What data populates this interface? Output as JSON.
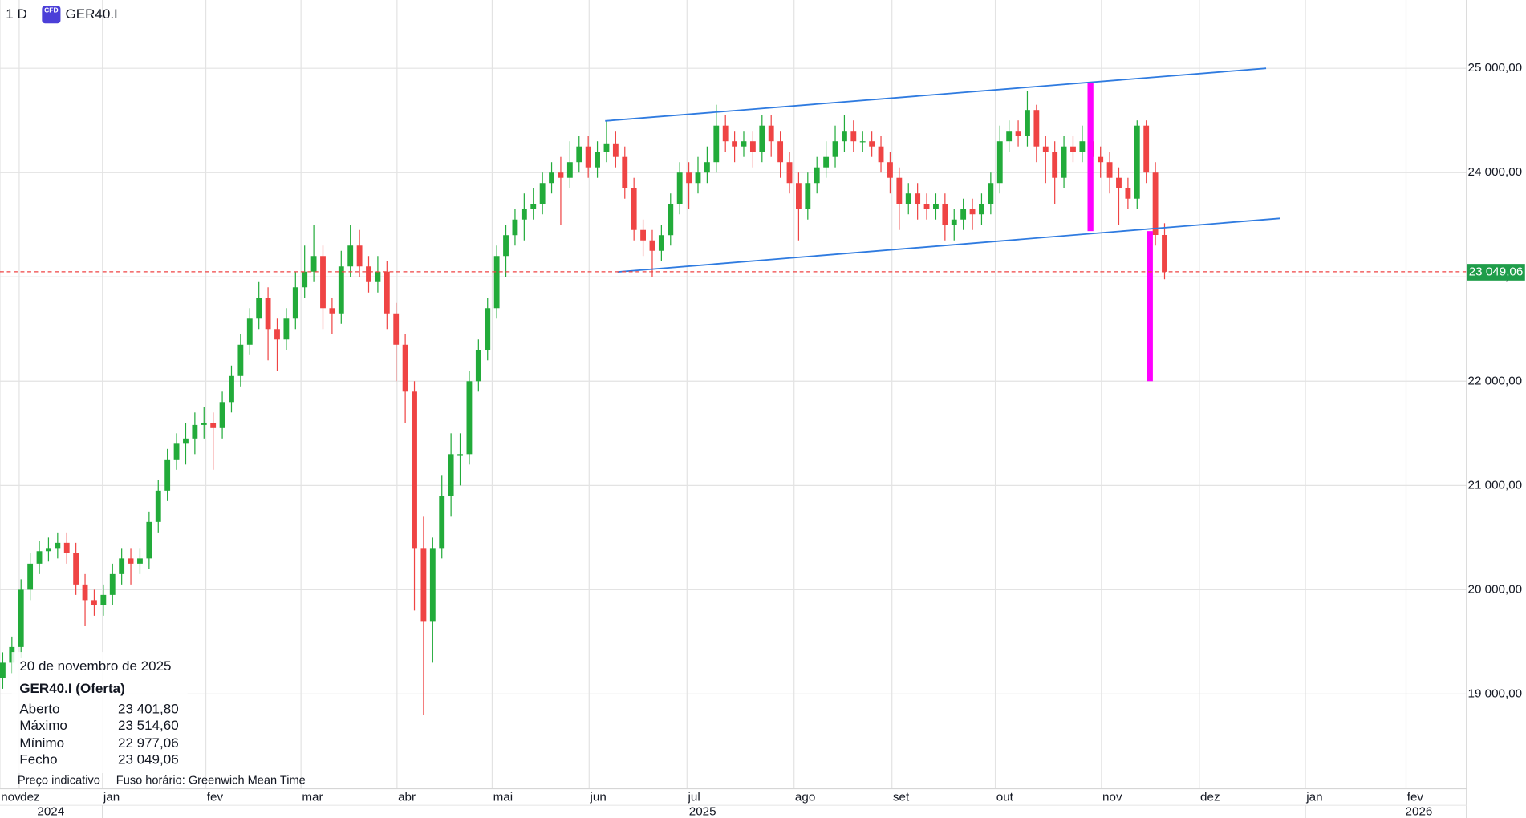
{
  "chart_data": {
    "type": "candlestick",
    "header": {
      "interval": "1 D",
      "icon": "CFD",
      "symbol": "GER40.I"
    },
    "up_color": "#22ab3a",
    "down_color": "#ef4444",
    "xlim": [
      -0.3,
      160
    ],
    "ylim": [
      18092,
      25655
    ],
    "grid": true,
    "yticks": [
      {
        "value": 19000,
        "label": "19 000,00"
      },
      {
        "value": 20000,
        "label": "20 000,00"
      },
      {
        "value": 21000,
        "label": "21 000,00"
      },
      {
        "value": 22000,
        "label": "22 000,00"
      },
      {
        "value": 23000,
        "label": "23 000,00"
      },
      {
        "value": 24000,
        "label": "24 000,00"
      },
      {
        "value": 25000,
        "label": "25 000,00"
      }
    ],
    "xticks": [
      {
        "value": -0.3,
        "label": "nov"
      },
      {
        "value": 1.8,
        "label": "dez"
      },
      {
        "value": 10.9,
        "label": "jan"
      },
      {
        "value": 22.2,
        "label": "fev"
      },
      {
        "value": 32.6,
        "label": "mar"
      },
      {
        "value": 43.1,
        "label": "abr"
      },
      {
        "value": 53.5,
        "label": "mai"
      },
      {
        "value": 64.1,
        "label": "jun"
      },
      {
        "value": 74.8,
        "label": "jul"
      },
      {
        "value": 86.5,
        "label": "ago"
      },
      {
        "value": 97.2,
        "label": "set"
      },
      {
        "value": 108.5,
        "label": "out"
      },
      {
        "value": 120.1,
        "label": "nov"
      },
      {
        "value": 130.8,
        "label": "dez"
      },
      {
        "value": 142.4,
        "label": "jan"
      },
      {
        "value": 153.4,
        "label": "fev"
      }
    ],
    "year_ticks": [
      {
        "value": 5.25,
        "label": "2024"
      },
      {
        "value": 76.5,
        "label": "2025"
      },
      {
        "value": 154.8,
        "label": "2026"
      }
    ],
    "ohlc": {
      "open": [
        19150,
        19300,
        19450,
        20000,
        20250,
        20370,
        20400,
        20450,
        20350,
        20050,
        19900,
        19850,
        19950,
        20150,
        20300,
        20250,
        20300,
        20650,
        20950,
        21250,
        21400,
        21450,
        21580,
        21600,
        21550,
        21800,
        22050,
        22350,
        22600,
        22800,
        22500,
        22400,
        22600,
        22900,
        23050,
        23200,
        22700,
        22650,
        23100,
        23300,
        23100,
        22950,
        23050,
        22650,
        22350,
        21900,
        20400,
        19700,
        20400,
        20900,
        21300,
        21300,
        22000,
        22300,
        22700,
        23200,
        23400,
        23550,
        23650,
        23700,
        23900,
        24000,
        23950,
        24100,
        24250,
        24050,
        24200,
        24280,
        24150,
        23850,
        23450,
        23350,
        23250,
        23400,
        23700,
        24000,
        23900,
        24000,
        24100,
        24450,
        24300,
        24250,
        24300,
        24200,
        24450,
        24300,
        24100,
        23900,
        23650,
        23900,
        24050,
        24150,
        24300,
        24400,
        24300,
        24300,
        24250,
        24100,
        23950,
        23700,
        23800,
        23700,
        23650,
        23700,
        23500,
        23550,
        23650,
        23600,
        23700,
        23900,
        24300,
        24400,
        24350,
        24600,
        24250,
        24200,
        23950,
        24250,
        24200,
        24300,
        24150,
        24100,
        23950,
        23850,
        23750,
        24450,
        24000,
        23401.8
      ],
      "high": [
        19400,
        19550,
        20100,
        20350,
        20470,
        20500,
        20550,
        20550,
        20450,
        20150,
        20000,
        20050,
        20250,
        20400,
        20400,
        20400,
        20750,
        21050,
        21350,
        21500,
        21600,
        21700,
        21750,
        21700,
        21900,
        22150,
        22450,
        22700,
        22950,
        22900,
        22600,
        22700,
        23050,
        23300,
        23500,
        23300,
        22800,
        23250,
        23500,
        23450,
        23200,
        23200,
        23150,
        22750,
        22450,
        22000,
        20700,
        20500,
        21100,
        21500,
        21500,
        22100,
        22400,
        22800,
        23300,
        23500,
        23650,
        23800,
        23850,
        24000,
        24100,
        24150,
        24300,
        24350,
        24350,
        24300,
        24500,
        24400,
        24250,
        23950,
        23550,
        23450,
        23500,
        23800,
        24100,
        24100,
        24150,
        24250,
        24650,
        24550,
        24400,
        24400,
        24400,
        24550,
        24550,
        24400,
        24200,
        24000,
        24000,
        24150,
        24300,
        24450,
        24550,
        24500,
        24400,
        24400,
        24350,
        24200,
        24050,
        23900,
        23900,
        23800,
        23800,
        23800,
        23650,
        23750,
        23750,
        23800,
        24000,
        24450,
        24500,
        24500,
        24780,
        24650,
        24350,
        24300,
        24350,
        24350,
        24450,
        24400,
        24250,
        24200,
        24050,
        23950,
        24500,
        24500,
        24100,
        23514.6
      ],
      "low": [
        19050,
        19200,
        19350,
        19900,
        20150,
        20270,
        20300,
        20250,
        19950,
        19650,
        19750,
        19750,
        19850,
        20050,
        20050,
        20150,
        20200,
        20550,
        20850,
        21150,
        21200,
        21300,
        21450,
        21150,
        21450,
        21700,
        21950,
        22250,
        22500,
        22200,
        22100,
        22300,
        22500,
        22800,
        22950,
        22500,
        22450,
        22550,
        23000,
        23000,
        22850,
        22850,
        22500,
        22000,
        21600,
        19800,
        18800,
        19300,
        20300,
        20700,
        21000,
        21200,
        21900,
        22200,
        22600,
        23000,
        23300,
        23350,
        23550,
        23600,
        23800,
        23500,
        23850,
        24000,
        23950,
        23950,
        24100,
        24050,
        23750,
        23350,
        23200,
        23000,
        23150,
        23300,
        23600,
        23650,
        23800,
        23900,
        24000,
        24200,
        24100,
        24150,
        24050,
        24100,
        24150,
        23950,
        23800,
        23350,
        23550,
        23800,
        23950,
        24050,
        24200,
        24200,
        24200,
        24150,
        24000,
        23800,
        23450,
        23600,
        23550,
        23550,
        23550,
        23350,
        23350,
        23450,
        23450,
        23500,
        23600,
        23800,
        24200,
        24250,
        24250,
        24100,
        23900,
        23700,
        23850,
        24100,
        24100,
        24000,
        23950,
        23800,
        23500,
        23650,
        23650,
        23900,
        23300,
        22977.06
      ],
      "close": [
        19300,
        19450,
        20000,
        20250,
        20370,
        20400,
        20450,
        20350,
        20050,
        19900,
        19850,
        19950,
        20150,
        20300,
        20250,
        20300,
        20650,
        20950,
        21250,
        21400,
        21450,
        21580,
        21600,
        21550,
        21800,
        22050,
        22350,
        22600,
        22800,
        22500,
        22400,
        22600,
        22900,
        23050,
        23200,
        22700,
        22650,
        23100,
        23300,
        23100,
        22950,
        23050,
        22650,
        22350,
        21900,
        20400,
        19700,
        20400,
        20900,
        21300,
        21300,
        22000,
        22300,
        22700,
        23200,
        23400,
        23550,
        23650,
        23700,
        23900,
        24000,
        23950,
        24100,
        24250,
        24050,
        24200,
        24280,
        24150,
        23850,
        23450,
        23350,
        23250,
        23400,
        23700,
        24000,
        23900,
        24000,
        24100,
        24450,
        24300,
        24250,
        24300,
        24200,
        24450,
        24300,
        24100,
        23900,
        23650,
        23900,
        24050,
        24150,
        24300,
        24400,
        24300,
        24300,
        24250,
        24100,
        23950,
        23700,
        23800,
        23700,
        23650,
        23700,
        23500,
        23550,
        23650,
        23600,
        23700,
        23900,
        24300,
        24400,
        24350,
        24600,
        24250,
        24200,
        23950,
        24250,
        24200,
        24300,
        24150,
        24100,
        23950,
        23850,
        23750,
        24450,
        24000,
        23401.8,
        23049.06
      ]
    },
    "trend_lines": [
      {
        "color": "#2f7be0",
        "x": [
          65.85,
          138.1
        ],
        "y": [
          24495,
          25000
        ]
      },
      {
        "color": "#2f7be0",
        "x": [
          67.2,
          139.6
        ],
        "y": [
          23047,
          23561
        ]
      }
    ],
    "range_markers": [
      {
        "color": "#ff00ff",
        "x": 118.9,
        "y": [
          24860,
          23439
        ]
      },
      {
        "color": "#ff00ff",
        "x": 125.4,
        "y": [
          23439,
          22000
        ]
      }
    ],
    "price_line": {
      "value": 23049.06,
      "label": "23 049,06",
      "line_color": "#ef4444",
      "box_color": "#1f9d4a"
    },
    "info": {
      "date": "20 de novembro de 2025",
      "symbol": "GER40.I (Oferta)",
      "rows": [
        {
          "label": "Aberto",
          "value": "23 401,80"
        },
        {
          "label": "Máximo",
          "value": "23 514,60"
        },
        {
          "label": "Mínimo",
          "value": "22 977,06"
        },
        {
          "label": "Fecho",
          "value": "23 049,06"
        }
      ]
    },
    "footer": {
      "note": "Preço indicativo",
      "timezone": "Fuso horário: Greenwich Mean Time"
    }
  }
}
